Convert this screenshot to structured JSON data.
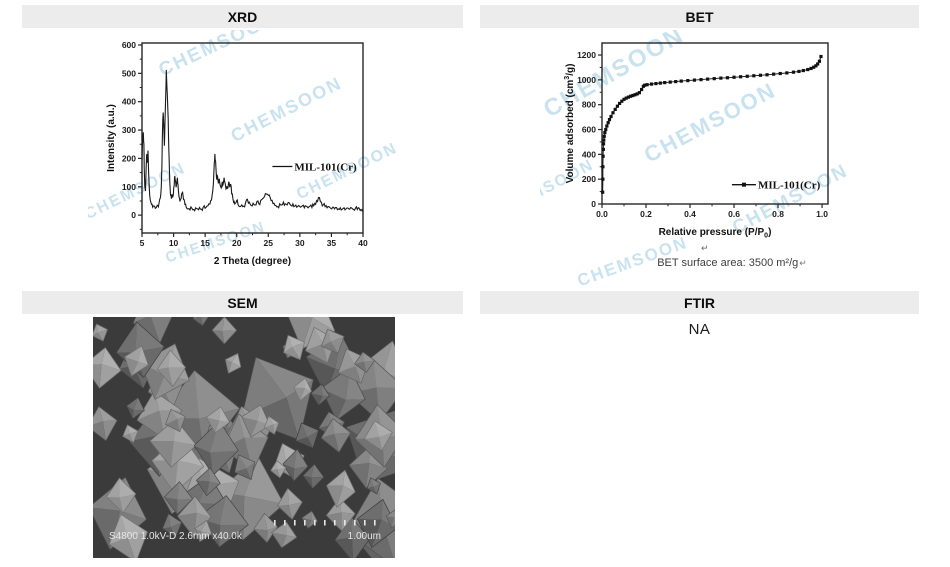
{
  "watermark": {
    "text": "CHEMSOON",
    "color": "#c3dfee"
  },
  "panels": {
    "xrd": {
      "header": "XRD"
    },
    "bet": {
      "header": "BET",
      "caption": "BET surface area: 3500 m²/g",
      "return_mark": "↵"
    },
    "sem": {
      "header": "SEM",
      "info_text": "S4800 1.0kV-D 2.6mm x40.0k",
      "scale_label": "1.00um"
    },
    "ftir": {
      "header": "FTIR",
      "body": "NA"
    }
  },
  "chart_data": [
    {
      "id": "xrd",
      "type": "line",
      "title": "XRD",
      "xlabel": [
        {
          "t": "2 Theta (degree)"
        }
      ],
      "ylabel": [
        {
          "t": "Intensity (a.u.)"
        }
      ],
      "xlim": [
        5,
        40
      ],
      "ylim": [
        -63,
        607
      ],
      "xticks": [
        5,
        10,
        15,
        20,
        25,
        30,
        35,
        40
      ],
      "xtick_labels": [
        "5",
        "10",
        "15",
        "20",
        "25",
        "30",
        "35",
        "40"
      ],
      "xminor": 2.5,
      "yticks": [
        0,
        100,
        200,
        300,
        400,
        500,
        600
      ],
      "ytick_labels": [
        "0",
        "100",
        "200",
        "300",
        "400",
        "500",
        "600"
      ],
      "yminor": 50,
      "grid": false,
      "legend": {
        "label": "MIL-101(Cr)",
        "marker": "line",
        "fx": 0.59,
        "fy": 0.65
      },
      "series": [
        {
          "name": "MIL-101(Cr)",
          "color": "#1a1a1a",
          "noise": 2.5,
          "points": [
            [
              5.0,
              195
            ],
            [
              5.1,
              260
            ],
            [
              5.2,
              292
            ],
            [
              5.3,
              250
            ],
            [
              5.35,
              170
            ],
            [
              5.45,
              100
            ],
            [
              5.55,
              85
            ],
            [
              5.65,
              160
            ],
            [
              5.75,
              215
            ],
            [
              5.85,
              185
            ],
            [
              5.95,
              228
            ],
            [
              6.05,
              150
            ],
            [
              6.15,
              95
            ],
            [
              6.3,
              55
            ],
            [
              6.5,
              38
            ],
            [
              6.7,
              28
            ],
            [
              6.9,
              32
            ],
            [
              7.1,
              24
            ],
            [
              7.3,
              28
            ],
            [
              7.5,
              34
            ],
            [
              7.7,
              42
            ],
            [
              7.9,
              60
            ],
            [
              8.05,
              100
            ],
            [
              8.15,
              170
            ],
            [
              8.25,
              300
            ],
            [
              8.35,
              362
            ],
            [
              8.45,
              310
            ],
            [
              8.55,
              245
            ],
            [
              8.65,
              330
            ],
            [
              8.75,
              420
            ],
            [
              8.85,
              512
            ],
            [
              8.95,
              455
            ],
            [
              9.05,
              398
            ],
            [
              9.15,
              340
            ],
            [
              9.25,
              235
            ],
            [
              9.35,
              150
            ],
            [
              9.45,
              98
            ],
            [
              9.55,
              68
            ],
            [
              9.65,
              58
            ],
            [
              9.75,
              72
            ],
            [
              9.85,
              62
            ],
            [
              9.95,
              70
            ],
            [
              10.1,
              105
            ],
            [
              10.2,
              138
            ],
            [
              10.3,
              120
            ],
            [
              10.4,
              98
            ],
            [
              10.5,
              112
            ],
            [
              10.6,
              132
            ],
            [
              10.7,
              108
            ],
            [
              10.8,
              80
            ],
            [
              10.9,
              62
            ],
            [
              11.0,
              48
            ],
            [
              11.2,
              58
            ],
            [
              11.35,
              78
            ],
            [
              11.5,
              70
            ],
            [
              11.65,
              55
            ],
            [
              11.8,
              38
            ],
            [
              12.0,
              28
            ],
            [
              12.3,
              22
            ],
            [
              12.6,
              18
            ],
            [
              12.9,
              24
            ],
            [
              13.2,
              20
            ],
            [
              13.5,
              26
            ],
            [
              13.8,
              22
            ],
            [
              14.1,
              27
            ],
            [
              14.4,
              21
            ],
            [
              14.7,
              28
            ],
            [
              15.0,
              24
            ],
            [
              15.3,
              32
            ],
            [
              15.6,
              40
            ],
            [
              15.9,
              52
            ],
            [
              16.1,
              70
            ],
            [
              16.3,
              110
            ],
            [
              16.45,
              185
            ],
            [
              16.55,
              216
            ],
            [
              16.65,
              190
            ],
            [
              16.75,
              150
            ],
            [
              16.85,
              125
            ],
            [
              16.95,
              138
            ],
            [
              17.1,
              112
            ],
            [
              17.25,
              128
            ],
            [
              17.4,
              104
            ],
            [
              17.55,
              96
            ],
            [
              17.7,
              118
            ],
            [
              17.85,
              108
            ],
            [
              18.0,
              132
            ],
            [
              18.15,
              115
            ],
            [
              18.3,
              92
            ],
            [
              18.45,
              102
            ],
            [
              18.6,
              96
            ],
            [
              18.75,
              118
            ],
            [
              18.9,
              98
            ],
            [
              19.05,
              108
            ],
            [
              19.2,
              75
            ],
            [
              19.4,
              58
            ],
            [
              19.6,
              48
            ],
            [
              19.8,
              42
            ],
            [
              20.0,
              52
            ],
            [
              20.2,
              38
            ],
            [
              20.5,
              30
            ],
            [
              20.8,
              36
            ],
            [
              21.1,
              32
            ],
            [
              21.4,
              44
            ],
            [
              21.7,
              56
            ],
            [
              22.0,
              46
            ],
            [
              22.3,
              34
            ],
            [
              22.6,
              42
            ],
            [
              22.9,
              36
            ],
            [
              23.2,
              48
            ],
            [
              23.5,
              40
            ],
            [
              23.8,
              52
            ],
            [
              24.1,
              58
            ],
            [
              24.4,
              66
            ],
            [
              24.7,
              74
            ],
            [
              25.0,
              70
            ],
            [
              25.3,
              62
            ],
            [
              25.6,
              52
            ],
            [
              25.9,
              42
            ],
            [
              26.2,
              34
            ],
            [
              26.5,
              30
            ],
            [
              26.8,
              40
            ],
            [
              27.1,
              36
            ],
            [
              27.4,
              46
            ],
            [
              27.7,
              40
            ],
            [
              28.0,
              36
            ],
            [
              28.3,
              44
            ],
            [
              28.6,
              34
            ],
            [
              28.9,
              40
            ],
            [
              29.2,
              32
            ],
            [
              29.5,
              28
            ],
            [
              29.8,
              34
            ],
            [
              30.1,
              28
            ],
            [
              30.4,
              33
            ],
            [
              30.7,
              26
            ],
            [
              31.0,
              31
            ],
            [
              31.3,
              26
            ],
            [
              31.6,
              32
            ],
            [
              31.9,
              27
            ],
            [
              32.2,
              33
            ],
            [
              32.5,
              38
            ],
            [
              32.8,
              48
            ],
            [
              33.1,
              62
            ],
            [
              33.4,
              46
            ],
            [
              33.7,
              36
            ],
            [
              34.0,
              30
            ],
            [
              34.3,
              26
            ],
            [
              34.6,
              30
            ],
            [
              34.9,
              24
            ],
            [
              35.2,
              28
            ],
            [
              35.5,
              22
            ],
            [
              35.8,
              27
            ],
            [
              36.1,
              22
            ],
            [
              36.4,
              26
            ],
            [
              36.7,
              21
            ],
            [
              37.0,
              26
            ],
            [
              37.3,
              22
            ],
            [
              37.6,
              25
            ],
            [
              37.9,
              21
            ],
            [
              38.2,
              25
            ],
            [
              38.5,
              20
            ],
            [
              38.8,
              24
            ],
            [
              39.1,
              20
            ],
            [
              39.4,
              24
            ],
            [
              39.7,
              20
            ],
            [
              40.0,
              22
            ]
          ]
        }
      ]
    },
    {
      "id": "bet",
      "type": "scatter-line",
      "title": "BET",
      "xlabel": [
        {
          "t": "Relative pressure (P/P"
        },
        {
          "t": "0",
          "sub": true
        },
        {
          "t": ")"
        }
      ],
      "ylabel": [
        {
          "t": "Volume adsorbed (cm"
        },
        {
          "t": "3",
          "sup": true
        },
        {
          "t": "/g)"
        }
      ],
      "xlim": [
        0,
        1.027
      ],
      "ylim": [
        0,
        1297
      ],
      "xticks": [
        0,
        0.2,
        0.4,
        0.6,
        0.8,
        1.0
      ],
      "xtick_labels": [
        "0.0",
        "0.2",
        "0.4",
        "0.6",
        "0.8",
        "1.0"
      ],
      "xminor": 0.1,
      "yticks": [
        0,
        200,
        400,
        600,
        800,
        1000,
        1200
      ],
      "ytick_labels": [
        "0",
        "200",
        "400",
        "600",
        "800",
        "1000",
        "1200"
      ],
      "yminor": 100,
      "grid": false,
      "legend": {
        "label": "MIL-101(Cr)",
        "marker": "square-line",
        "fx": 0.575,
        "fy": 0.88
      },
      "series": [
        {
          "name": "MIL-101(Cr)",
          "color": "#111111",
          "points": [
            [
              0.003,
              95
            ],
            [
              0.004,
              200
            ],
            [
              0.004,
              300
            ],
            [
              0.005,
              385
            ],
            [
              0.006,
              440
            ],
            [
              0.007,
              485
            ],
            [
              0.008,
              515
            ],
            [
              0.01,
              545
            ],
            [
              0.013,
              575
            ],
            [
              0.017,
              600
            ],
            [
              0.022,
              628
            ],
            [
              0.028,
              655
            ],
            [
              0.034,
              680
            ],
            [
              0.041,
              705
            ],
            [
              0.05,
              735
            ],
            [
              0.06,
              762
            ],
            [
              0.07,
              788
            ],
            [
              0.08,
              810
            ],
            [
              0.09,
              828
            ],
            [
              0.1,
              843
            ],
            [
              0.11,
              853
            ],
            [
              0.12,
              861
            ],
            [
              0.13,
              868
            ],
            [
              0.14,
              874
            ],
            [
              0.15,
              880
            ],
            [
              0.16,
              887
            ],
            [
              0.17,
              897
            ],
            [
              0.18,
              922
            ],
            [
              0.188,
              948
            ],
            [
              0.194,
              957
            ],
            [
              0.205,
              961
            ],
            [
              0.225,
              966
            ],
            [
              0.245,
              970
            ],
            [
              0.265,
              974
            ],
            [
              0.285,
              978
            ],
            [
              0.31,
              982
            ],
            [
              0.335,
              986
            ],
            [
              0.36,
              990
            ],
            [
              0.39,
              994
            ],
            [
              0.42,
              998
            ],
            [
              0.45,
              1002
            ],
            [
              0.48,
              1006
            ],
            [
              0.51,
              1010
            ],
            [
              0.54,
              1014
            ],
            [
              0.57,
              1017
            ],
            [
              0.6,
              1021
            ],
            [
              0.63,
              1025
            ],
            [
              0.66,
              1029
            ],
            [
              0.69,
              1033
            ],
            [
              0.72,
              1037
            ],
            [
              0.75,
              1041
            ],
            [
              0.78,
              1046
            ],
            [
              0.81,
              1051
            ],
            [
              0.84,
              1056
            ],
            [
              0.87,
              1062
            ],
            [
              0.895,
              1068
            ],
            [
              0.915,
              1075
            ],
            [
              0.935,
              1083
            ],
            [
              0.95,
              1092
            ],
            [
              0.962,
              1102
            ],
            [
              0.972,
              1113
            ],
            [
              0.98,
              1128
            ],
            [
              0.988,
              1150
            ],
            [
              0.995,
              1188
            ]
          ]
        }
      ]
    }
  ]
}
